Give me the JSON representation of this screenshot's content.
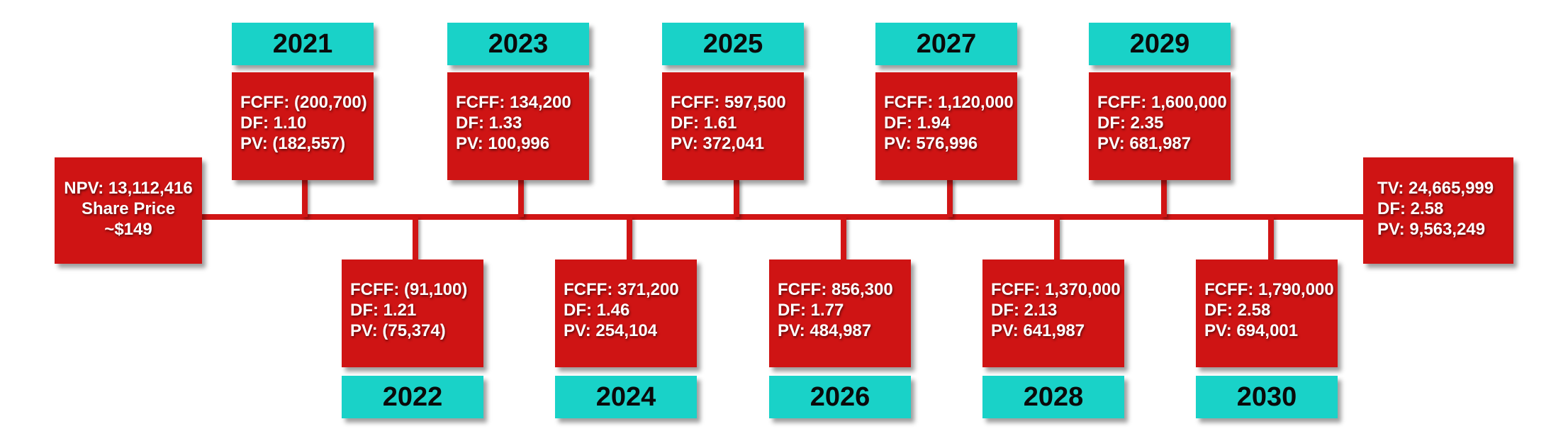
{
  "colors": {
    "red": "#cf1414",
    "teal": "#19d2c8",
    "year_text": "#0a0a0a",
    "value_text": "#ffffff"
  },
  "start": {
    "npv": "NPV: 13,112,416",
    "share_price_label": "Share Price",
    "share_price": "~$149"
  },
  "years": {
    "y2021": {
      "year": "2021",
      "fcff": "FCFF: (200,700)",
      "df": "DF: 1.10",
      "pv": "PV: (182,557)"
    },
    "y2022": {
      "year": "2022",
      "fcff": "FCFF: (91,100)",
      "df": "DF: 1.21",
      "pv": "PV: (75,374)"
    },
    "y2023": {
      "year": "2023",
      "fcff": "FCFF: 134,200",
      "df": "DF: 1.33",
      "pv": "PV: 100,996"
    },
    "y2024": {
      "year": "2024",
      "fcff": "FCFF: 371,200",
      "df": "DF: 1.46",
      "pv": "PV: 254,104"
    },
    "y2025": {
      "year": "2025",
      "fcff": "FCFF: 597,500",
      "df": "DF: 1.61",
      "pv": "PV: 372,041"
    },
    "y2026": {
      "year": "2026",
      "fcff": "FCFF: 856,300",
      "df": "DF: 1.77",
      "pv": "PV: 484,987"
    },
    "y2027": {
      "year": "2027",
      "fcff": "FCFF: 1,120,000",
      "df": "DF: 1.94",
      "pv": "PV: 576,996"
    },
    "y2028": {
      "year": "2028",
      "fcff": "FCFF: 1,370,000",
      "df": "DF: 2.13",
      "pv": "PV: 641,987"
    },
    "y2029": {
      "year": "2029",
      "fcff": "FCFF: 1,600,000",
      "df": "DF: 2.35",
      "pv": "PV: 681,987"
    },
    "y2030": {
      "year": "2030",
      "fcff": "FCFF: 1,790,000",
      "df": "DF: 2.58",
      "pv": "PV: 694,001"
    }
  },
  "terminal": {
    "tv": "TV: 24,665,999",
    "df": "DF: 2.58",
    "pv": "PV: 9,563,249"
  }
}
